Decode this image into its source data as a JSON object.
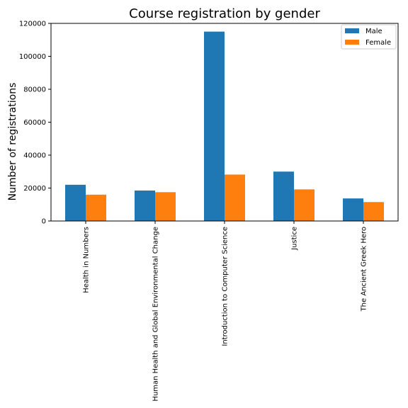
{
  "chart_data": {
    "type": "bar",
    "title": "Course registration by gender",
    "xlabel": "",
    "ylabel": "Number of registrations",
    "categories": [
      "Health in Numbers",
      "Human Health and Global Environmental Change",
      "Introduction to Computer Science",
      "Justice",
      "The Ancient Greek Hero"
    ],
    "series": [
      {
        "name": "Male",
        "color": "#1f77b4",
        "values": [
          22000,
          18500,
          115000,
          30000,
          13700
        ]
      },
      {
        "name": "Female",
        "color": "#ff7f0e",
        "values": [
          16000,
          17500,
          28200,
          19200,
          11500
        ]
      }
    ],
    "ylim": [
      0,
      120000
    ],
    "yticks": [
      0,
      20000,
      40000,
      60000,
      80000,
      100000,
      120000
    ],
    "ytick_labels": [
      "0",
      "20000",
      "40000",
      "60000",
      "80000",
      "100000",
      "120000"
    ],
    "grid": false,
    "legend_position": "top-right"
  }
}
